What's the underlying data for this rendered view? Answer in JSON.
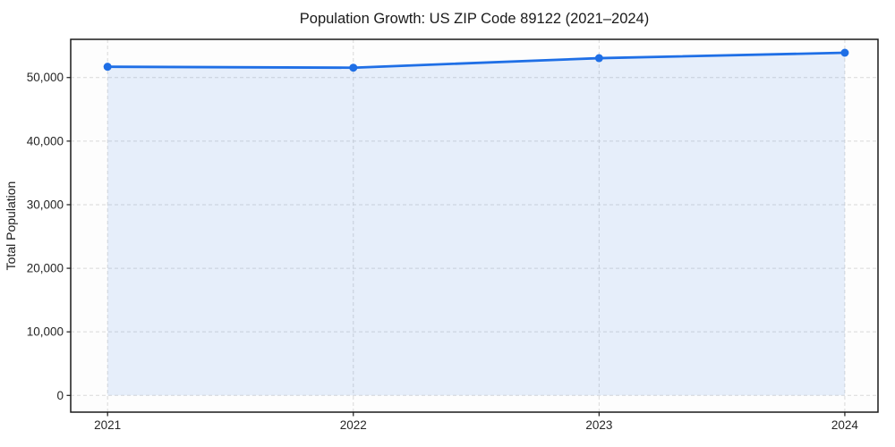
{
  "chart_data": {
    "type": "line",
    "title": "Population Growth: US ZIP Code 89122 (2021–2024)",
    "xlabel": "",
    "ylabel": "Total Population",
    "x": [
      2021,
      2022,
      2023,
      2024
    ],
    "series": [
      {
        "name": "Total Population",
        "values": [
          51700,
          51550,
          53050,
          53900
        ]
      }
    ],
    "xticks": [
      2021,
      2022,
      2023,
      2024
    ],
    "xtick_labels": [
      "2021",
      "2022",
      "2023",
      "2024"
    ],
    "yticks": [
      0,
      10000,
      20000,
      30000,
      40000,
      50000
    ],
    "ytick_labels": [
      "0",
      "10,000",
      "20,000",
      "30,000",
      "40,000",
      "50,000"
    ],
    "xlim": [
      2020.85,
      2024.135
    ],
    "ylim": [
      -2630,
      56010
    ],
    "grid": {
      "visible": true,
      "style": "dashed"
    },
    "legend": {
      "visible": false
    },
    "area_fill": true,
    "area_baseline": 0,
    "marker": {
      "shape": "circle",
      "radius": 4.5
    },
    "line_width": 2.8,
    "colors": {
      "line": "#1f6fe6",
      "fill": "#1f6fe6",
      "fill_opacity": 0.1,
      "grid": "#d9d9d9",
      "spine": "#1a1a1a",
      "title_text": "#1a1a1a",
      "tick_text": "#262626",
      "background": "#ffffff",
      "plot_background": "#fdfdfd"
    }
  }
}
